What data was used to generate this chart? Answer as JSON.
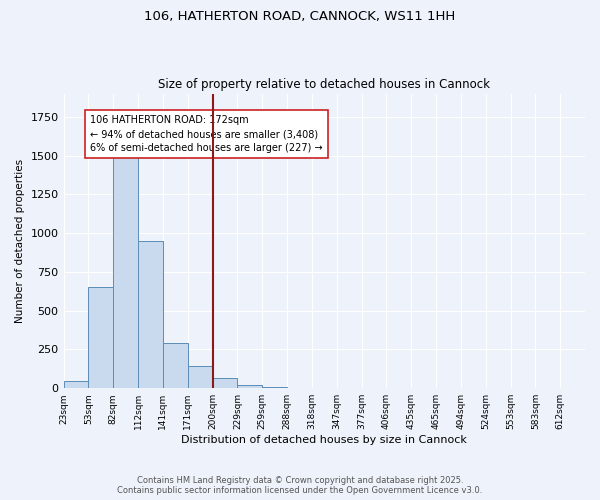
{
  "title": "106, HATHERTON ROAD, CANNOCK, WS11 1HH",
  "subtitle": "Size of property relative to detached houses in Cannock",
  "xlabel": "Distribution of detached houses by size in Cannock",
  "ylabel": "Number of detached properties",
  "bar_labels": [
    "23sqm",
    "53sqm",
    "82sqm",
    "112sqm",
    "141sqm",
    "171sqm",
    "200sqm",
    "229sqm",
    "259sqm",
    "288sqm",
    "318sqm",
    "347sqm",
    "377sqm",
    "406sqm",
    "435sqm",
    "465sqm",
    "494sqm",
    "524sqm",
    "553sqm",
    "583sqm",
    "612sqm"
  ],
  "bar_values": [
    45,
    650,
    1500,
    950,
    290,
    140,
    65,
    20,
    5,
    3,
    2,
    2,
    1,
    1,
    0,
    0,
    0,
    0,
    0,
    0,
    0
  ],
  "bar_color": "#c9d9ee",
  "bar_edge_color": "#5b8db8",
  "vline_color": "#8b1a1a",
  "annotation_text": "106 HATHERTON ROAD: 172sqm\n← 94% of detached houses are smaller (3,408)\n6% of semi-detached houses are larger (227) →",
  "annotation_box_color": "#ffffff",
  "annotation_box_edge_color": "#cc2222",
  "background_color": "#eef2fa",
  "grid_color": "#ffffff",
  "footer_text": "Contains HM Land Registry data © Crown copyright and database right 2025.\nContains public sector information licensed under the Open Government Licence v3.0.",
  "ylim": [
    0,
    1900
  ],
  "bin_width": 29,
  "vline_bin_index": 5
}
